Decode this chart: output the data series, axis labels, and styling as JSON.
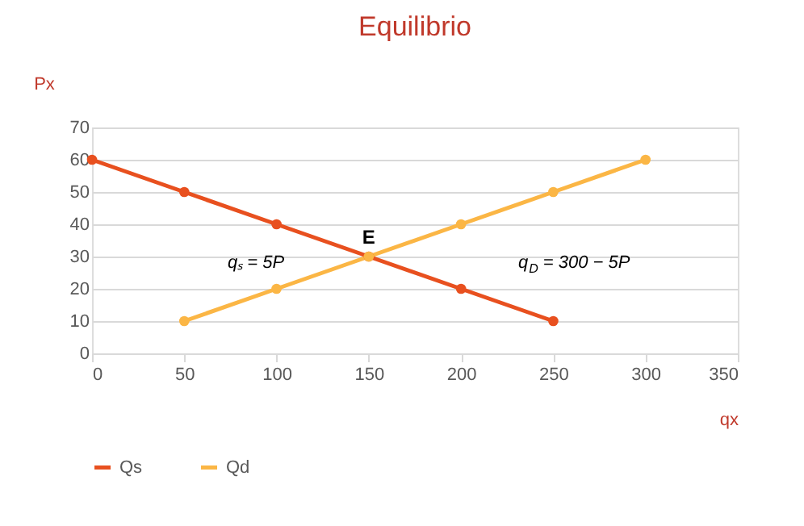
{
  "chart_data": {
    "type": "line",
    "title": "Equilibrio",
    "xlabel": "qx",
    "ylabel": "Px",
    "series": [
      {
        "name": "Qs",
        "color": "#e8501f",
        "x": [
          0,
          50,
          100,
          150,
          200,
          250
        ],
        "values": [
          60,
          50,
          40,
          30,
          20,
          10
        ]
      },
      {
        "name": "Qd",
        "color": "#fbb645",
        "x": [
          50,
          100,
          150,
          200,
          250,
          300
        ],
        "values": [
          10,
          20,
          30,
          40,
          50,
          60
        ]
      }
    ],
    "xlim": [
      0,
      350
    ],
    "xticks": [
      0,
      50,
      100,
      150,
      200,
      250,
      300,
      350
    ],
    "ylim": [
      0,
      70
    ],
    "yticks": [
      0,
      10,
      20,
      30,
      40,
      50,
      60,
      70
    ],
    "grid": "y",
    "legend": "bottom",
    "marker": "circle",
    "line_style": "solid",
    "annotations": [
      {
        "text": "E",
        "x": 150,
        "y": 30
      },
      "qₛ = 5P",
      "q$_{D}$ = 300 − 5P"
    ]
  }
}
